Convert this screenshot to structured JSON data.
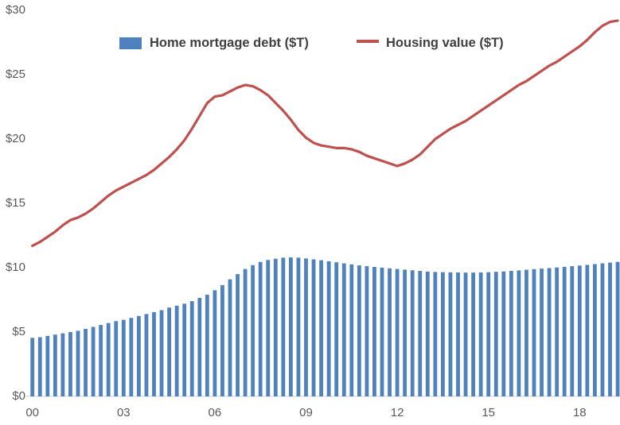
{
  "chart_data": {
    "type": "combo_bar_line",
    "frequency": "quarterly",
    "x_range": "2000Q1 to 2019Q2",
    "title": "",
    "grid": "off",
    "legend_position": "top-center",
    "series": [
      {
        "name": "Home mortgage debt ($T)",
        "type": "bar",
        "color": "#4E81BD",
        "values": [
          4.55,
          4.6,
          4.7,
          4.8,
          4.9,
          5.0,
          5.1,
          5.25,
          5.4,
          5.55,
          5.7,
          5.85,
          5.95,
          6.1,
          6.25,
          6.4,
          6.55,
          6.7,
          6.9,
          7.05,
          7.2,
          7.4,
          7.65,
          7.9,
          8.25,
          8.65,
          9.1,
          9.5,
          9.9,
          10.2,
          10.45,
          10.6,
          10.7,
          10.78,
          10.8,
          10.78,
          10.72,
          10.65,
          10.58,
          10.5,
          10.42,
          10.34,
          10.26,
          10.18,
          10.12,
          10.06,
          10.0,
          9.95,
          9.9,
          9.85,
          9.8,
          9.75,
          9.7,
          9.67,
          9.65,
          9.64,
          9.63,
          9.62,
          9.62,
          9.63,
          9.65,
          9.68,
          9.71,
          9.75,
          9.79,
          9.84,
          9.89,
          9.93,
          9.97,
          10.02,
          10.07,
          10.12,
          10.17,
          10.22,
          10.28,
          10.34,
          10.4,
          10.45
        ]
      },
      {
        "name": "Housing value ($T)",
        "type": "line",
        "color": "#C0504D",
        "values": [
          11.7,
          12.0,
          12.4,
          12.8,
          13.3,
          13.7,
          13.9,
          14.2,
          14.6,
          15.1,
          15.6,
          16.0,
          16.3,
          16.6,
          16.9,
          17.2,
          17.6,
          18.1,
          18.6,
          19.2,
          19.9,
          20.8,
          21.8,
          22.8,
          23.3,
          23.4,
          23.7,
          24.0,
          24.2,
          24.1,
          23.8,
          23.4,
          22.8,
          22.2,
          21.5,
          20.7,
          20.1,
          19.7,
          19.5,
          19.4,
          19.3,
          19.3,
          19.2,
          19.0,
          18.7,
          18.5,
          18.3,
          18.1,
          17.9,
          18.1,
          18.4,
          18.8,
          19.4,
          20.0,
          20.4,
          20.8,
          21.1,
          21.4,
          21.8,
          22.2,
          22.6,
          23.0,
          23.4,
          23.8,
          24.2,
          24.5,
          24.9,
          25.3,
          25.7,
          26.0,
          26.4,
          26.8,
          27.2,
          27.7,
          28.3,
          28.8,
          29.1,
          29.2
        ]
      }
    ],
    "x_axis": {
      "tick_labels": [
        "00",
        "03",
        "06",
        "09",
        "12",
        "15",
        "18"
      ],
      "tick_quarter_indices": [
        0,
        12,
        24,
        36,
        48,
        60,
        72
      ]
    },
    "y_axis": {
      "tick_labels": [
        "$0",
        "$5",
        "$10",
        "$15",
        "$20",
        "$25",
        "$30"
      ],
      "tick_values": [
        0,
        5,
        10,
        15,
        20,
        25,
        30
      ],
      "ylim": [
        0,
        30
      ]
    },
    "colors": {
      "axis_line": "#D9D9D9",
      "tick_text": "#595959",
      "legend_text": "#3F3F3F",
      "background": "#FFFFFF"
    }
  }
}
